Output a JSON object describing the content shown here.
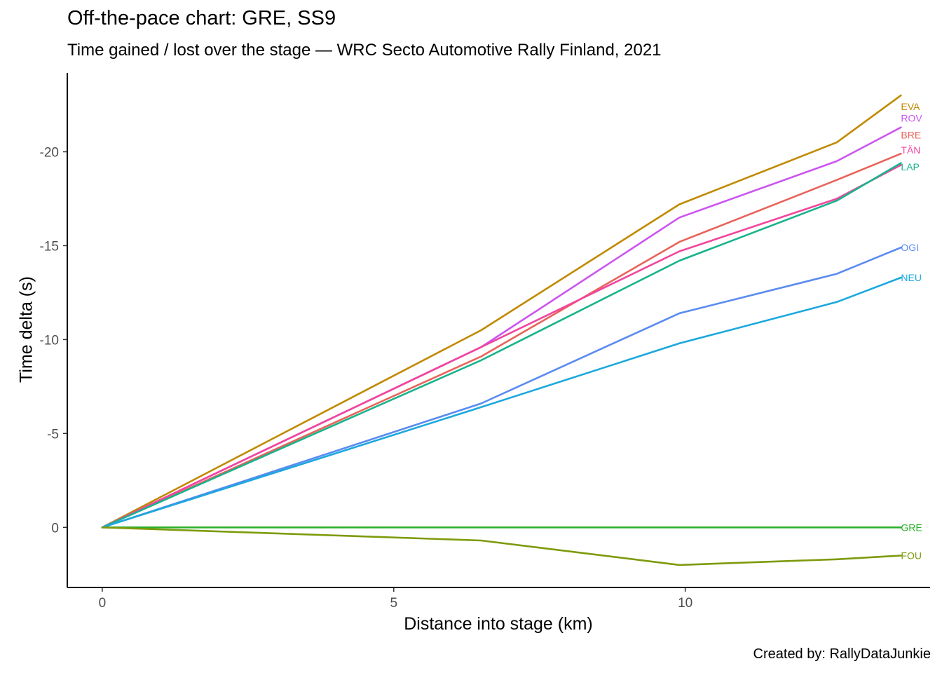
{
  "chart_data": {
    "type": "line",
    "title": "Off-the-pace chart: GRE, SS9",
    "subtitle": "Time gained / lost over the stage — WRC Secto Automotive Rally Finland, 2021",
    "caption": "Created by: RallyDataJunkie",
    "xlabel": "Distance into stage (km)",
    "ylabel": "Time delta (s)",
    "xlim": [
      -0.6,
      14.2
    ],
    "ylim": [
      3.2,
      -24.2
    ],
    "y_reversed": true,
    "x_ticks": [
      0,
      5,
      10
    ],
    "x_tick_labels": [
      "0",
      "5",
      "10"
    ],
    "y_ticks": [
      -20,
      -15,
      -10,
      -5,
      0
    ],
    "y_tick_labels": [
      "-20",
      "-15",
      "-10",
      "-5",
      "0"
    ],
    "grid": false,
    "legend": "none",
    "series": [
      {
        "name": "EVA",
        "color": "#C08A00",
        "x": [
          0,
          6.5,
          9.9,
          12.6,
          13.7
        ],
        "y": [
          0,
          -10.5,
          -17.2,
          -20.5,
          -23.0
        ]
      },
      {
        "name": "ROV",
        "color": "#CC55F0",
        "x": [
          0,
          6.5,
          9.9,
          12.6,
          13.7
        ],
        "y": [
          0,
          -9.6,
          -16.5,
          -19.5,
          -21.3
        ]
      },
      {
        "name": "BRE",
        "color": "#E8635A",
        "x": [
          0,
          6.5,
          9.9,
          12.6,
          13.7
        ],
        "y": [
          0,
          -9.1,
          -15.2,
          -18.5,
          -19.9
        ]
      },
      {
        "name": "TÄN",
        "color": "#F0469E",
        "x": [
          0,
          6.5,
          9.9,
          12.6,
          13.7
        ],
        "y": [
          0,
          -9.6,
          -14.7,
          -17.5,
          -19.3
        ]
      },
      {
        "name": "LAP",
        "color": "#19B38C",
        "x": [
          0,
          6.5,
          9.9,
          12.6,
          13.7
        ],
        "y": [
          0,
          -8.9,
          -14.2,
          -17.4,
          -19.4
        ]
      },
      {
        "name": "OGI",
        "color": "#5A8BF0",
        "x": [
          0,
          6.5,
          9.9,
          12.6,
          13.7
        ],
        "y": [
          0,
          -6.6,
          -11.4,
          -13.5,
          -14.9
        ]
      },
      {
        "name": "NEU",
        "color": "#1CA8DD",
        "x": [
          0,
          6.5,
          9.9,
          12.6,
          13.7
        ],
        "y": [
          0,
          -6.4,
          -9.8,
          -12.0,
          -13.3
        ]
      },
      {
        "name": "GRE",
        "color": "#2BB02B",
        "x": [
          0,
          6.5,
          9.9,
          12.6,
          13.7
        ],
        "y": [
          0,
          0,
          0,
          0,
          0
        ]
      },
      {
        "name": "FOU",
        "color": "#7E9A0C",
        "x": [
          0,
          6.5,
          9.9,
          12.6,
          13.7
        ],
        "y": [
          0,
          0.7,
          2.0,
          1.7,
          1.5
        ]
      }
    ],
    "end_labels": [
      {
        "text": "EVA",
        "series": "EVA",
        "y": -22.4
      },
      {
        "text": "ROV",
        "series": "ROV",
        "y": -21.8
      },
      {
        "text": "BRE",
        "series": "BRE",
        "y": -20.9
      },
      {
        "text": "TÄN",
        "series": "TÄN",
        "y": -20.1
      },
      {
        "text": "LAP",
        "series": "LAP",
        "y": -19.2
      },
      {
        "text": "OGI",
        "series": "OGI",
        "y": -14.9
      },
      {
        "text": "NEU",
        "series": "NEU",
        "y": -13.3
      },
      {
        "text": "GRE",
        "series": "GRE",
        "y": 0
      },
      {
        "text": "FOU",
        "series": "FOU",
        "y": 1.5
      }
    ]
  }
}
